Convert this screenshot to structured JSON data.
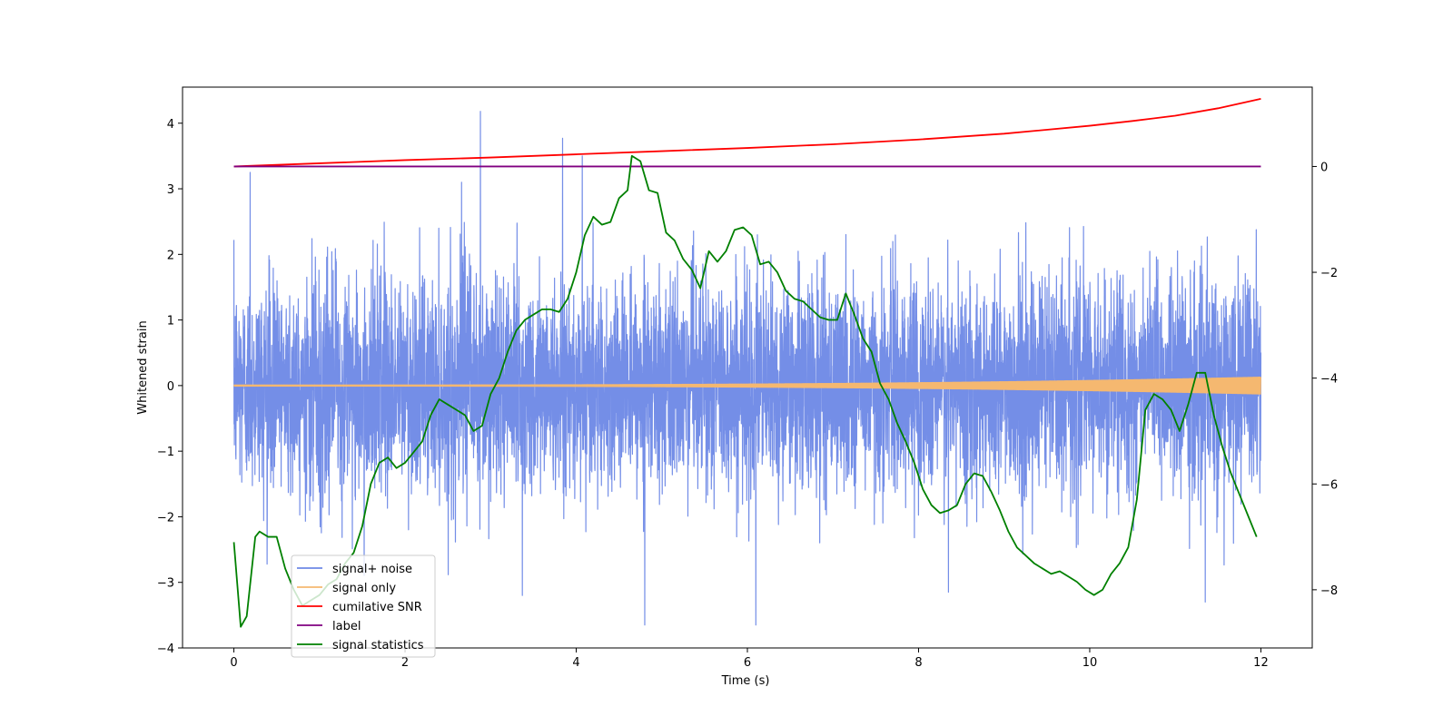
{
  "chart_data": {
    "type": "line",
    "title": "",
    "xlabel": "Time (s)",
    "ylabel": "Whitened strain",
    "y2label": "",
    "xlim": [
      -0.6,
      12.6
    ],
    "ylim": [
      -4.0,
      4.55
    ],
    "y2lim": [
      -9.1,
      1.5
    ],
    "x_ticks": [
      0,
      2,
      4,
      6,
      8,
      10,
      12
    ],
    "x_tick_labels": [
      "0",
      "2",
      "4",
      "6",
      "8",
      "10",
      "12"
    ],
    "y_ticks": [
      -4,
      -3,
      -2,
      -1,
      0,
      1,
      2,
      3,
      4
    ],
    "y_tick_labels": [
      "−4",
      "−3",
      "−2",
      "−1",
      "0",
      "1",
      "2",
      "3",
      "4"
    ],
    "y2_ticks": [
      -8,
      -6,
      -4,
      -2,
      0
    ],
    "y2_tick_labels": [
      "−8",
      "−6",
      "−4",
      "−2",
      "0"
    ],
    "grid": false,
    "legend_position": "lower-left",
    "series": [
      {
        "name": "signal+ noise",
        "axis": "left",
        "color": "#6d88e6",
        "kind": "noise",
        "x_range": [
          0,
          12
        ],
        "std": 0.8,
        "spikes": [
          [
            2.88,
            4.18
          ],
          [
            3.84,
            3.77
          ],
          [
            4.07,
            3.5
          ],
          [
            0.19,
            3.25
          ],
          [
            2.66,
            3.1
          ],
          [
            6.1,
            -3.65
          ],
          [
            4.8,
            -3.65
          ],
          [
            3.37,
            -3.2
          ],
          [
            8.35,
            -3.15
          ],
          [
            11.35,
            -3.3
          ]
        ]
      },
      {
        "name": "signal only",
        "axis": "left",
        "color": "#f5b870",
        "kind": "chirp",
        "x_range": [
          0,
          12
        ],
        "amp_start": 0.01,
        "amp_end": 0.13
      },
      {
        "name": "cumilative SNR",
        "axis": "right",
        "color": "#ff0000",
        "x": [
          0,
          1,
          2,
          3,
          4,
          5,
          6,
          7,
          8,
          9,
          10,
          10.5,
          11,
          11.5,
          12
        ],
        "values": [
          0.0,
          0.06,
          0.12,
          0.17,
          0.23,
          0.29,
          0.35,
          0.42,
          0.51,
          0.62,
          0.77,
          0.86,
          0.96,
          1.1,
          1.28
        ]
      },
      {
        "name": "label",
        "axis": "right",
        "color": "#800080",
        "x": [
          0,
          12
        ],
        "values": [
          0,
          0
        ]
      },
      {
        "name": "signal statistics",
        "axis": "right",
        "color": "#008000",
        "x": [
          0,
          0.08,
          0.15,
          0.25,
          0.3,
          0.4,
          0.5,
          0.6,
          0.7,
          0.8,
          0.9,
          1.0,
          1.1,
          1.2,
          1.3,
          1.4,
          1.5,
          1.6,
          1.7,
          1.8,
          1.9,
          2.0,
          2.1,
          2.2,
          2.3,
          2.4,
          2.5,
          2.6,
          2.7,
          2.8,
          2.9,
          3.0,
          3.1,
          3.2,
          3.3,
          3.4,
          3.5,
          3.6,
          3.7,
          3.8,
          3.9,
          4.0,
          4.1,
          4.2,
          4.3,
          4.4,
          4.5,
          4.6,
          4.65,
          4.75,
          4.85,
          4.95,
          5.05,
          5.15,
          5.25,
          5.35,
          5.45,
          5.55,
          5.65,
          5.75,
          5.85,
          5.95,
          6.05,
          6.15,
          6.25,
          6.35,
          6.45,
          6.55,
          6.65,
          6.75,
          6.85,
          6.95,
          7.05,
          7.15,
          7.25,
          7.35,
          7.45,
          7.55,
          7.65,
          7.75,
          7.85,
          7.95,
          8.05,
          8.15,
          8.25,
          8.35,
          8.45,
          8.55,
          8.65,
          8.75,
          8.85,
          8.95,
          9.05,
          9.15,
          9.25,
          9.35,
          9.45,
          9.55,
          9.65,
          9.75,
          9.85,
          9.95,
          10.05,
          10.15,
          10.25,
          10.35,
          10.45,
          10.55,
          10.65,
          10.75,
          10.85,
          10.95,
          11.05,
          11.15,
          11.25,
          11.35,
          11.45,
          11.55,
          11.65,
          11.75,
          11.85,
          11.95
        ],
        "values": [
          -7.1,
          -8.7,
          -8.5,
          -7.0,
          -6.9,
          -7.0,
          -7.0,
          -7.6,
          -8.0,
          -8.3,
          -8.2,
          -8.1,
          -7.9,
          -7.8,
          -7.5,
          -7.3,
          -6.8,
          -6.0,
          -5.6,
          -5.5,
          -5.7,
          -5.6,
          -5.4,
          -5.2,
          -4.7,
          -4.4,
          -4.5,
          -4.6,
          -4.7,
          -5.0,
          -4.9,
          -4.3,
          -4.0,
          -3.5,
          -3.1,
          -2.9,
          -2.8,
          -2.7,
          -2.7,
          -2.75,
          -2.5,
          -2.0,
          -1.3,
          -0.95,
          -1.1,
          -1.05,
          -0.6,
          -0.45,
          0.2,
          0.1,
          -0.45,
          -0.5,
          -1.25,
          -1.4,
          -1.75,
          -1.95,
          -2.3,
          -1.6,
          -1.8,
          -1.6,
          -1.2,
          -1.15,
          -1.3,
          -1.85,
          -1.8,
          -2.0,
          -2.35,
          -2.5,
          -2.55,
          -2.7,
          -2.85,
          -2.9,
          -2.9,
          -2.4,
          -2.8,
          -3.25,
          -3.5,
          -4.1,
          -4.4,
          -4.85,
          -5.2,
          -5.6,
          -6.1,
          -6.4,
          -6.55,
          -6.5,
          -6.4,
          -6.0,
          -5.8,
          -5.85,
          -6.15,
          -6.5,
          -6.9,
          -7.2,
          -7.35,
          -7.5,
          -7.6,
          -7.7,
          -7.65,
          -7.75,
          -7.85,
          -8.0,
          -8.1,
          -8.0,
          -7.7,
          -7.5,
          -7.2,
          -6.3,
          -4.6,
          -4.3,
          -4.4,
          -4.6,
          -5.0,
          -4.5,
          -3.9,
          -3.9,
          -4.7,
          -5.3,
          -5.8,
          -6.2,
          -6.6,
          -7.0
        ]
      }
    ]
  }
}
